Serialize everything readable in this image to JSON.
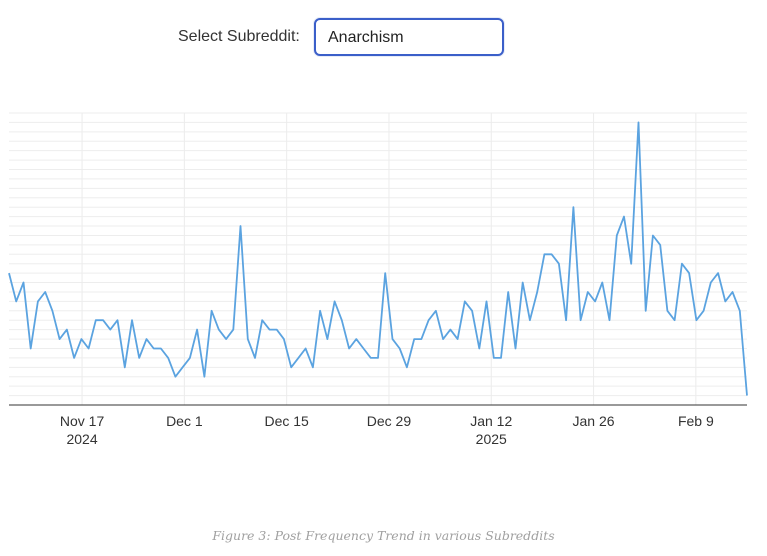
{
  "controls": {
    "label": "Select Subreddit:",
    "selected": "Anarchism"
  },
  "chart_data": {
    "type": "line",
    "title": "",
    "xlabel": "",
    "ylabel": "",
    "color": "#5ba3e0",
    "grid": true,
    "y_tick_labels_shown": false,
    "x_start": "2024-11-07",
    "x_end": "2025-02-16",
    "ylim": [
      0,
      31
    ],
    "x_ticks": [
      {
        "date": "2024-11-17",
        "label": "Nov 17",
        "sublabel": "2024"
      },
      {
        "date": "2024-12-01",
        "label": "Dec 1",
        "sublabel": ""
      },
      {
        "date": "2024-12-15",
        "label": "Dec 15",
        "sublabel": ""
      },
      {
        "date": "2024-12-29",
        "label": "Dec 29",
        "sublabel": ""
      },
      {
        "date": "2025-01-12",
        "label": "Jan 12",
        "sublabel": "2025"
      },
      {
        "date": "2025-01-26",
        "label": "Jan 26",
        "sublabel": ""
      },
      {
        "date": "2025-02-09",
        "label": "Feb 9",
        "sublabel": ""
      }
    ],
    "series": [
      {
        "values": [
          14,
          11,
          13,
          6,
          11,
          12,
          10,
          7,
          8,
          5,
          7,
          6,
          9,
          9,
          8,
          9,
          4,
          9,
          5,
          7,
          6,
          6,
          5,
          3,
          4,
          5,
          8,
          3,
          10,
          8,
          7,
          8,
          19,
          7,
          5,
          9,
          8,
          8,
          7,
          4,
          5,
          6,
          4,
          10,
          7,
          11,
          9,
          6,
          7,
          6,
          5,
          5,
          14,
          7,
          6,
          4,
          7,
          7,
          9,
          10,
          7,
          8,
          7,
          11,
          10,
          6,
          11,
          5,
          5,
          12,
          6,
          13,
          9,
          12,
          16,
          16,
          15,
          9,
          21,
          9,
          12,
          11,
          13,
          9,
          18,
          20,
          15,
          30,
          10,
          18,
          17,
          10,
          9,
          15,
          14,
          9,
          10,
          13,
          14,
          11,
          12,
          10,
          1
        ]
      }
    ]
  },
  "caption": "Figure 3: Post Frequency Trend in various Subreddits"
}
